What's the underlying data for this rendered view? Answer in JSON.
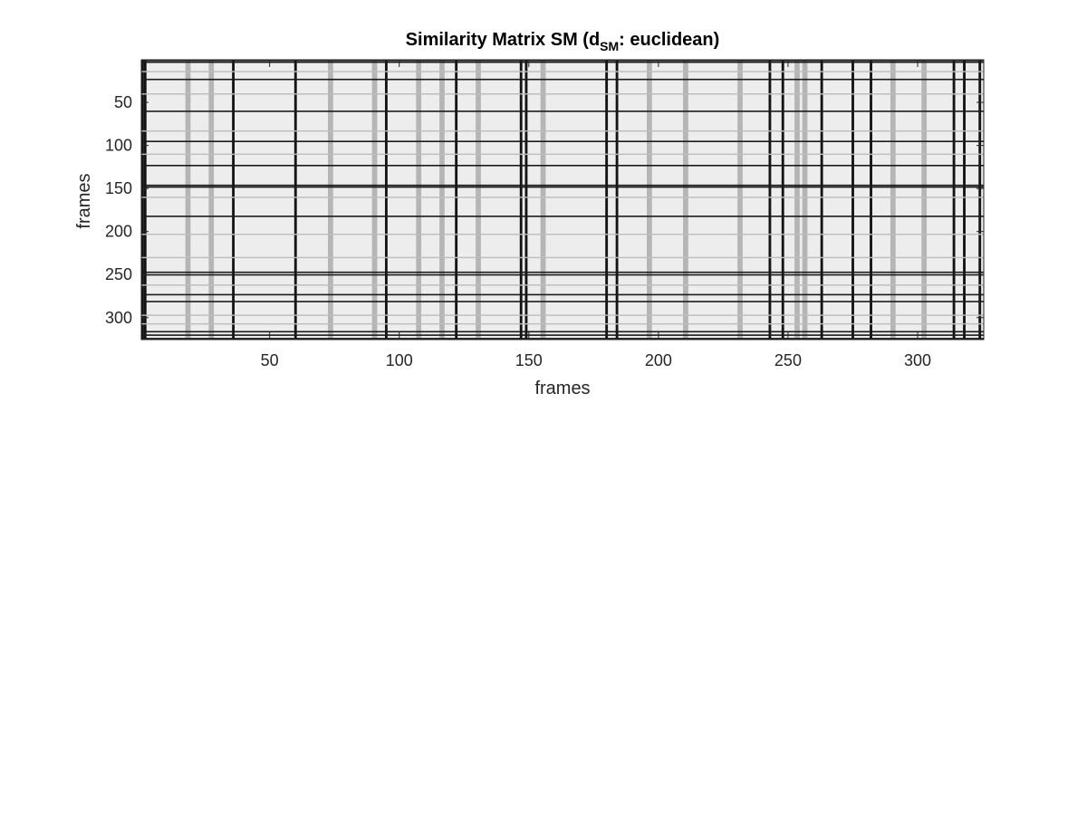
{
  "chart_data": {
    "type": "heatmap",
    "title_prefix": "Similarity Matrix SM   (d",
    "title_subscript": "SM",
    "title_suffix": ": euclidean)",
    "xlabel": "frames",
    "ylabel": "frames",
    "xlim": [
      1,
      325
    ],
    "ylim": [
      1,
      325
    ],
    "y_direction": "reversed",
    "x_ticks": [
      50,
      100,
      150,
      200,
      250,
      300
    ],
    "y_ticks": [
      50,
      100,
      150,
      200,
      250,
      300
    ],
    "x_tick_labels": [
      "50",
      "100",
      "150",
      "200",
      "250",
      "300"
    ],
    "y_tick_labels": [
      "50",
      "100",
      "150",
      "200",
      "250",
      "300"
    ],
    "colormap": "gray",
    "background_level": 0.93,
    "dark_columns": [
      1,
      2,
      36,
      60,
      95,
      122,
      147,
      149,
      180,
      184,
      243,
      248,
      263,
      275,
      282,
      314,
      318,
      324
    ],
    "gray_columns": [
      18,
      27,
      73,
      90,
      107,
      116,
      130,
      155,
      196,
      210,
      231,
      253,
      256,
      290,
      302
    ],
    "dark_rows": [
      1,
      3,
      23,
      60,
      95,
      123,
      146,
      148,
      182,
      247,
      250,
      273,
      281,
      316,
      320,
      324
    ],
    "gray_rows": [
      14,
      40,
      83,
      110,
      160,
      203,
      230,
      262,
      297,
      307
    ]
  }
}
